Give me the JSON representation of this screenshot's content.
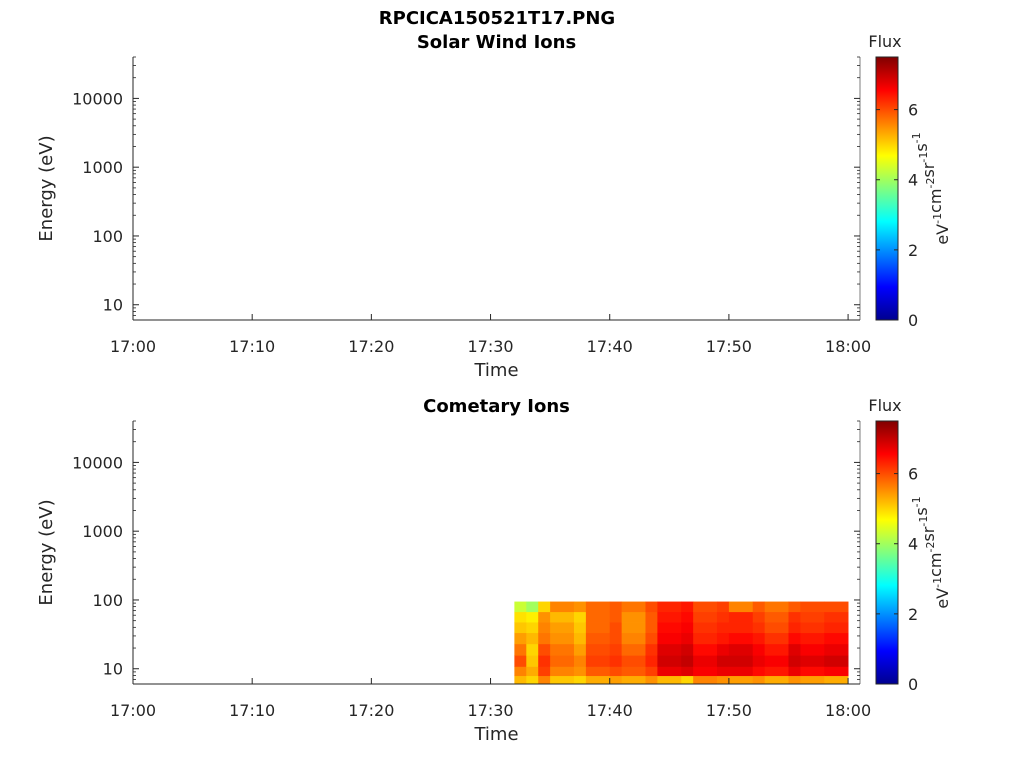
{
  "figure_title": "RPCICA150521T17.PNG",
  "colorbar": {
    "label": "Flux",
    "unit": "eV-1cm-2sr-1s-1",
    "range": [
      0,
      7.5
    ],
    "ticks": [
      "0",
      "2",
      "4",
      "6"
    ],
    "colormap": "jet"
  },
  "chart_data": [
    {
      "type": "heatmap",
      "title": "Solar Wind Ions",
      "xlabel": "Time",
      "ylabel": "Energy (eV)",
      "x_ticks": [
        "17:00",
        "17:10",
        "17:20",
        "17:30",
        "17:40",
        "17:50",
        "18:00"
      ],
      "x_range": [
        "17:00",
        "18:01"
      ],
      "y_ticks": [
        "10",
        "100",
        "1000",
        "10000"
      ],
      "y_range": [
        6,
        40000
      ],
      "y_scale": "log",
      "cells": []
    },
    {
      "type": "heatmap",
      "title": "Cometary Ions",
      "xlabel": "Time",
      "ylabel": "Energy (eV)",
      "x_ticks": [
        "17:00",
        "17:10",
        "17:20",
        "17:30",
        "17:40",
        "17:50",
        "18:00"
      ],
      "x_range": [
        "17:00",
        "18:01"
      ],
      "y_ticks": [
        "10",
        "100",
        "1000",
        "10000"
      ],
      "y_range": [
        6,
        40000
      ],
      "y_scale": "log",
      "data_time_range": [
        "17:32",
        "18:00"
      ],
      "data_energy_range": [
        7,
        80
      ],
      "energy_rows": [
        7,
        9,
        13,
        19,
        28,
        40,
        57,
        80
      ],
      "flux_columns": [
        {
          "start": "17:32",
          "end": "17:33",
          "flux": [
            5.2,
            5.6,
            6.0,
            5.7,
            5.4,
            5.1,
            4.9,
            4.3
          ]
        },
        {
          "start": "17:33",
          "end": "17:34",
          "flux": [
            5.0,
            5.3,
            5.1,
            5.0,
            5.2,
            5.0,
            4.8,
            4.0
          ]
        },
        {
          "start": "17:34",
          "end": "17:35",
          "flux": [
            5.6,
            6.1,
            6.2,
            6.0,
            5.7,
            5.6,
            5.5,
            5.0
          ]
        },
        {
          "start": "17:35",
          "end": "17:37",
          "flux": [
            5.1,
            5.6,
            5.8,
            5.7,
            5.5,
            5.4,
            5.2,
            5.6
          ]
        },
        {
          "start": "17:37",
          "end": "17:38",
          "flux": [
            5.0,
            5.5,
            5.6,
            5.4,
            5.2,
            5.1,
            5.0,
            5.5
          ]
        },
        {
          "start": "17:38",
          "end": "17:40",
          "flux": [
            5.3,
            5.9,
            6.1,
            6.0,
            5.9,
            5.8,
            5.8,
            5.8
          ]
        },
        {
          "start": "17:40",
          "end": "17:41",
          "flux": [
            5.4,
            6.0,
            6.2,
            6.1,
            6.0,
            6.0,
            5.9,
            5.9
          ]
        },
        {
          "start": "17:41",
          "end": "17:43",
          "flux": [
            5.3,
            5.9,
            6.0,
            5.8,
            5.6,
            5.5,
            5.5,
            5.7
          ]
        },
        {
          "start": "17:43",
          "end": "17:44",
          "flux": [
            5.5,
            6.1,
            6.3,
            6.2,
            6.0,
            5.9,
            5.9,
            6.0
          ]
        },
        {
          "start": "17:44",
          "end": "17:46",
          "flux": [
            5.2,
            6.7,
            6.9,
            6.8,
            6.6,
            6.5,
            6.4,
            6.3
          ]
        },
        {
          "start": "17:46",
          "end": "17:47",
          "flux": [
            5.0,
            6.8,
            7.0,
            6.9,
            6.7,
            6.6,
            6.5,
            6.4
          ]
        },
        {
          "start": "17:47",
          "end": "17:49",
          "flux": [
            5.6,
            6.6,
            6.7,
            6.5,
            6.3,
            6.2,
            6.1,
            6.0
          ]
        },
        {
          "start": "17:49",
          "end": "17:50",
          "flux": [
            5.5,
            6.7,
            6.9,
            6.7,
            6.4,
            6.3,
            6.2,
            6.1
          ]
        },
        {
          "start": "17:50",
          "end": "17:52",
          "flux": [
            5.4,
            6.7,
            6.9,
            6.8,
            6.5,
            6.3,
            6.3,
            5.6
          ]
        },
        {
          "start": "17:52",
          "end": "17:53",
          "flux": [
            5.5,
            6.5,
            6.7,
            6.6,
            6.4,
            6.2,
            6.1,
            5.9
          ]
        },
        {
          "start": "17:53",
          "end": "17:55",
          "flux": [
            5.3,
            6.4,
            6.6,
            6.4,
            6.2,
            6.0,
            5.9,
            5.7
          ]
        },
        {
          "start": "17:55",
          "end": "17:56",
          "flux": [
            5.5,
            6.7,
            6.9,
            6.8,
            6.5,
            6.3,
            6.2,
            5.9
          ]
        },
        {
          "start": "17:56",
          "end": "17:58",
          "flux": [
            5.4,
            6.5,
            6.8,
            6.6,
            6.4,
            6.2,
            6.1,
            6.0
          ]
        },
        {
          "start": "17:58",
          "end": "18:00",
          "flux": [
            5.3,
            6.6,
            6.9,
            6.7,
            6.5,
            6.3,
            6.2,
            6.0
          ]
        }
      ]
    }
  ]
}
